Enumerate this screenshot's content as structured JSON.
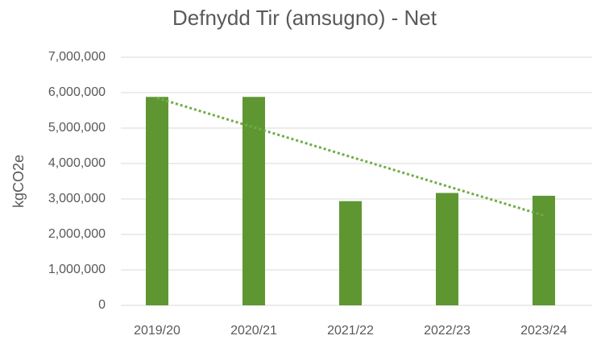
{
  "chart_data": {
    "type": "bar",
    "title": "Defnydd Tir (amsugno) - Net",
    "y_label": "kgCO2e",
    "categories": [
      "2019/20",
      "2020/21",
      "2021/22",
      "2022/23",
      "2023/24"
    ],
    "values": [
      5880000,
      5880000,
      2940000,
      3170000,
      3090000
    ],
    "color": "#5e9732",
    "ylim": [
      0,
      7000000
    ],
    "yticks": [
      0,
      {
        "value": 1000000,
        "label": "1,000,000"
      },
      {
        "value": 2000000,
        "label": "2,000,000"
      },
      {
        "value": 3000000,
        "label": "3,000,000"
      },
      {
        "value": 4000000,
        "label": "4,000,000"
      },
      {
        "value": 5000000,
        "label": "5,000,000"
      },
      {
        "value": 6000000,
        "label": "6,000,000"
      },
      {
        "value": 7000000,
        "label": "7,000,000"
      }
    ],
    "grid": true,
    "trendline": "linear"
  }
}
